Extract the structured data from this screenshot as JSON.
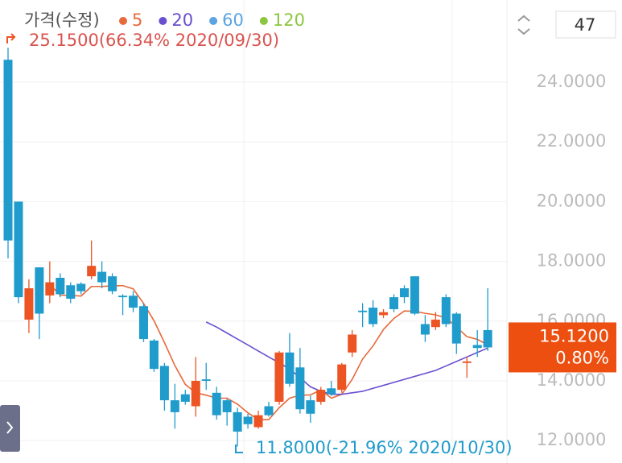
{
  "chart_data": {
    "type": "candlestick",
    "title": "가격(수정)",
    "period": 47,
    "up_color": "#ec5424",
    "down_color": "#1f9bcc",
    "open": [
      24.75,
      20.0,
      16.05,
      17.8,
      16.86,
      17.45,
      17.2,
      17.25,
      17.5,
      17.65,
      17.5,
      16.85,
      16.85,
      16.5,
      15.35,
      14.5,
      13.35,
      13.55,
      13.15,
      14.05,
      13.6,
      13.35,
      12.95,
      12.8,
      12.45,
      13.15,
      13.3,
      14.95,
      14.45,
      13.35,
      13.3,
      13.75,
      13.7,
      14.95,
      16.35,
      16.45,
      16.2,
      16.8,
      17.1,
      17.5,
      15.9,
      15.8,
      16.8,
      16.25,
      14.6,
      15.2,
      15.7
    ],
    "high": [
      25.15,
      20.0,
      17.4,
      17.8,
      18.0,
      17.6,
      17.3,
      17.3,
      18.7,
      18.0,
      17.6,
      16.9,
      17.0,
      16.6,
      15.4,
      14.6,
      13.9,
      13.7,
      14.8,
      14.6,
      13.8,
      13.4,
      13.1,
      12.9,
      13.0,
      13.3,
      15.0,
      15.6,
      15.1,
      13.5,
      13.8,
      14.0,
      14.6,
      15.7,
      16.6,
      16.7,
      16.4,
      16.9,
      17.2,
      17.5,
      16.2,
      16.3,
      16.9,
      16.3,
      14.8,
      15.7,
      17.1
    ],
    "low": [
      18.1,
      16.6,
      15.6,
      15.4,
      16.6,
      16.8,
      16.6,
      16.9,
      17.4,
      17.1,
      16.9,
      16.2,
      16.3,
      15.3,
      14.3,
      13.0,
      12.4,
      13.2,
      12.8,
      13.7,
      12.7,
      12.5,
      11.8,
      12.4,
      12.4,
      12.8,
      13.2,
      13.8,
      12.9,
      12.6,
      13.2,
      13.5,
      13.6,
      14.8,
      15.8,
      15.8,
      16.1,
      16.3,
      16.6,
      16.2,
      15.3,
      15.7,
      15.8,
      14.9,
      14.1,
      14.8,
      15.0
    ],
    "close": [
      18.7,
      16.8,
      17.1,
      16.25,
      17.3,
      16.9,
      16.75,
      17.0,
      17.85,
      17.3,
      17.0,
      16.8,
      16.45,
      15.4,
      14.4,
      13.35,
      12.95,
      13.3,
      14.0,
      14.0,
      12.85,
      12.95,
      12.3,
      12.55,
      12.85,
      12.85,
      14.95,
      13.9,
      13.05,
      12.9,
      13.7,
      13.55,
      14.55,
      15.55,
      16.3,
      15.9,
      16.3,
      16.4,
      16.8,
      16.25,
      15.55,
      16.05,
      15.9,
      15.25,
      14.65,
      15.1,
      15.12
    ],
    "series": [
      {
        "name": "5",
        "color": "#e8693a",
        "values": [
          null,
          null,
          null,
          null,
          17.23,
          16.87,
          16.86,
          16.84,
          17.16,
          17.16,
          17.18,
          17.19,
          17.08,
          16.59,
          16.01,
          15.28,
          14.51,
          13.88,
          13.6,
          13.52,
          13.42,
          13.42,
          13.22,
          12.93,
          12.7,
          12.7,
          13.1,
          13.42,
          13.52,
          13.53,
          13.7,
          13.42,
          13.55,
          14.05,
          14.73,
          15.17,
          15.72,
          16.09,
          16.34,
          16.33,
          16.26,
          16.21,
          16.11,
          15.8,
          15.48,
          15.39,
          15.2
        ]
      },
      {
        "name": "20",
        "color": "#6a4fd0",
        "values": [
          null,
          null,
          null,
          null,
          null,
          null,
          null,
          null,
          null,
          null,
          null,
          null,
          null,
          null,
          null,
          null,
          null,
          null,
          null,
          15.97,
          15.8,
          15.6,
          15.4,
          15.2,
          15.0,
          14.8,
          14.6,
          14.4,
          14.1,
          13.8,
          13.65,
          13.55,
          13.55,
          13.6,
          13.65,
          13.75,
          13.85,
          13.95,
          14.05,
          14.15,
          14.25,
          14.35,
          14.5,
          14.65,
          14.8,
          14.95,
          15.1
        ]
      },
      {
        "name": "60",
        "color": "#5aa4e2"
      },
      {
        "name": "120",
        "color": "#8cc63f"
      }
    ],
    "ylim": [
      11.25,
      26.75
    ],
    "yticks": [
      {
        "value": 12,
        "label": "12.0000"
      },
      {
        "value": 14,
        "label": "14.0000"
      },
      {
        "value": 16,
        "label": "16.0000"
      },
      {
        "value": 18,
        "label": "18.0000"
      },
      {
        "value": 20,
        "label": "20.0000"
      },
      {
        "value": 22,
        "label": "22.0000"
      },
      {
        "value": 24,
        "label": "24.0000"
      }
    ],
    "grid": true,
    "max_label": "25.1500(66.34% 2020/09/30)",
    "min_label": "11.8000(-21.96% 2020/10/30)",
    "last_price": {
      "value": 15.12,
      "label": "15.1200"
    },
    "change_label": "0.80%"
  }
}
